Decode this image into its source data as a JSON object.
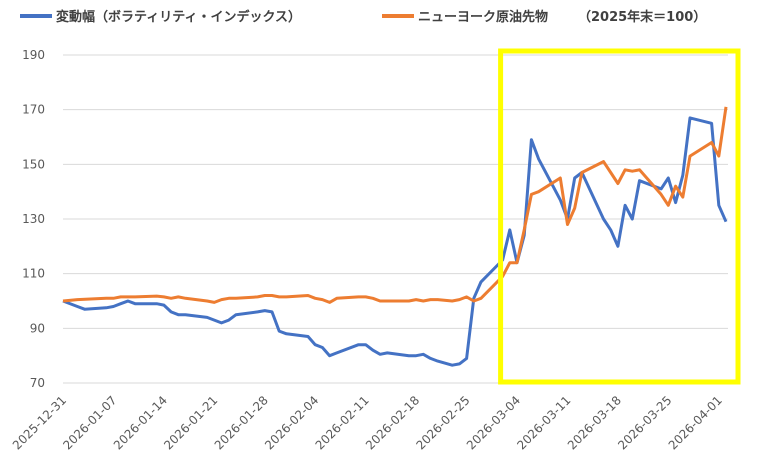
{
  "chart_data": {
    "type": "line",
    "legend": {
      "placement": "top",
      "note": "（2025年末＝100）"
    },
    "x_tick_labels": [
      "2025-12-31",
      "2026-01-07",
      "2026-01-14",
      "2026-01-21",
      "2026-01-28",
      "2026-02-04",
      "2026-02-11",
      "2026-02-18",
      "2026-02-25",
      "2026-03-04",
      "2026-03-11",
      "2026-03-18",
      "2026-03-25",
      "2026-04-01"
    ],
    "y_tick_labels": [
      "70",
      "90",
      "110",
      "130",
      "150",
      "170",
      "190"
    ],
    "ylim": [
      70,
      190
    ],
    "y_ticks": [
      70,
      90,
      110,
      130,
      150,
      170,
      190
    ],
    "grid": "horizontal",
    "highlight": {
      "from": "2026-03-02",
      "to": "2026-04-02",
      "color": "#FFFF00"
    },
    "series": [
      {
        "name": "変動幅（ボラティリティ・インデックス）",
        "color": "#4472C4",
        "points": [
          [
            "2025-12-31",
            100
          ],
          [
            "2026-01-02",
            98
          ],
          [
            "2026-01-03",
            97
          ],
          [
            "2026-01-06",
            97.5
          ],
          [
            "2026-01-07",
            98
          ],
          [
            "2026-01-08",
            99
          ],
          [
            "2026-01-09",
            100
          ],
          [
            "2026-01-10",
            99
          ],
          [
            "2026-01-13",
            99
          ],
          [
            "2026-01-14",
            98.5
          ],
          [
            "2026-01-15",
            96
          ],
          [
            "2026-01-16",
            95
          ],
          [
            "2026-01-17",
            95
          ],
          [
            "2026-01-20",
            94
          ],
          [
            "2026-01-21",
            93
          ],
          [
            "2026-01-22",
            92
          ],
          [
            "2026-01-23",
            93
          ],
          [
            "2026-01-24",
            95
          ],
          [
            "2026-01-27",
            96
          ],
          [
            "2026-01-28",
            96.5
          ],
          [
            "2026-01-29",
            96
          ],
          [
            "2026-01-30",
            89
          ],
          [
            "2026-01-31",
            88
          ],
          [
            "2026-02-03",
            87
          ],
          [
            "2026-02-04",
            84
          ],
          [
            "2026-02-05",
            83
          ],
          [
            "2026-02-06",
            80
          ],
          [
            "2026-02-07",
            81
          ],
          [
            "2026-02-10",
            84
          ],
          [
            "2026-02-11",
            84
          ],
          [
            "2026-02-12",
            82
          ],
          [
            "2026-02-13",
            80.5
          ],
          [
            "2026-02-14",
            81
          ],
          [
            "2026-02-17",
            80
          ],
          [
            "2026-02-18",
            80
          ],
          [
            "2026-02-19",
            80.5
          ],
          [
            "2026-02-20",
            79
          ],
          [
            "2026-02-21",
            78
          ],
          [
            "2026-02-23",
            76.5
          ],
          [
            "2026-02-24",
            77
          ],
          [
            "2026-02-25",
            79
          ],
          [
            "2026-02-26",
            101
          ],
          [
            "2026-02-27",
            107
          ],
          [
            "2026-03-02",
            115
          ],
          [
            "2026-03-03",
            126
          ],
          [
            "2026-03-04",
            114
          ],
          [
            "2026-03-05",
            124
          ],
          [
            "2026-03-06",
            159
          ],
          [
            "2026-03-07",
            152
          ],
          [
            "2026-03-10",
            137
          ],
          [
            "2026-03-11",
            130
          ],
          [
            "2026-03-12",
            145
          ],
          [
            "2026-03-13",
            147
          ],
          [
            "2026-03-16",
            130
          ],
          [
            "2026-03-17",
            126
          ],
          [
            "2026-03-18",
            120
          ],
          [
            "2026-03-19",
            135
          ],
          [
            "2026-03-20",
            130
          ],
          [
            "2026-03-21",
            144
          ],
          [
            "2026-03-24",
            141
          ],
          [
            "2026-03-25",
            145
          ],
          [
            "2026-03-26",
            136
          ],
          [
            "2026-03-27",
            146
          ],
          [
            "2026-03-28",
            167
          ],
          [
            "2026-03-31",
            165
          ],
          [
            "2026-04-01",
            135
          ],
          [
            "2026-04-02",
            129
          ]
        ]
      },
      {
        "name": "ニューヨーク原油先物",
        "color": "#ED7D31",
        "points": [
          [
            "2025-12-31",
            100
          ],
          [
            "2026-01-02",
            100.5
          ],
          [
            "2026-01-06",
            101
          ],
          [
            "2026-01-07",
            101
          ],
          [
            "2026-01-08",
            101.5
          ],
          [
            "2026-01-09",
            101.5
          ],
          [
            "2026-01-10",
            101.5
          ],
          [
            "2026-01-13",
            101.8
          ],
          [
            "2026-01-14",
            101.5
          ],
          [
            "2026-01-15",
            101
          ],
          [
            "2026-01-16",
            101.5
          ],
          [
            "2026-01-17",
            101
          ],
          [
            "2026-01-20",
            100
          ],
          [
            "2026-01-21",
            99.5
          ],
          [
            "2026-01-22",
            100.5
          ],
          [
            "2026-01-23",
            101
          ],
          [
            "2026-01-24",
            101
          ],
          [
            "2026-01-27",
            101.5
          ],
          [
            "2026-01-28",
            102
          ],
          [
            "2026-01-29",
            102
          ],
          [
            "2026-01-30",
            101.5
          ],
          [
            "2026-01-31",
            101.5
          ],
          [
            "2026-02-03",
            102
          ],
          [
            "2026-02-04",
            101
          ],
          [
            "2026-02-05",
            100.5
          ],
          [
            "2026-02-06",
            99.5
          ],
          [
            "2026-02-07",
            101
          ],
          [
            "2026-02-10",
            101.5
          ],
          [
            "2026-02-11",
            101.5
          ],
          [
            "2026-02-12",
            101
          ],
          [
            "2026-02-13",
            100
          ],
          [
            "2026-02-14",
            100
          ],
          [
            "2026-02-17",
            100
          ],
          [
            "2026-02-18",
            100.5
          ],
          [
            "2026-02-19",
            100
          ],
          [
            "2026-02-20",
            100.5
          ],
          [
            "2026-02-21",
            100.5
          ],
          [
            "2026-02-23",
            100
          ],
          [
            "2026-02-24",
            100.5
          ],
          [
            "2026-02-25",
            101.5
          ],
          [
            "2026-02-26",
            100
          ],
          [
            "2026-02-27",
            101
          ],
          [
            "2026-03-02",
            109
          ],
          [
            "2026-03-03",
            114
          ],
          [
            "2026-03-04",
            114
          ],
          [
            "2026-03-05",
            126
          ],
          [
            "2026-03-06",
            139
          ],
          [
            "2026-03-07",
            140
          ],
          [
            "2026-03-10",
            145
          ],
          [
            "2026-03-11",
            128
          ],
          [
            "2026-03-12",
            134
          ],
          [
            "2026-03-13",
            147
          ],
          [
            "2026-03-16",
            151
          ],
          [
            "2026-03-17",
            147
          ],
          [
            "2026-03-18",
            143
          ],
          [
            "2026-03-19",
            148
          ],
          [
            "2026-03-20",
            147.5
          ],
          [
            "2026-03-21",
            148
          ],
          [
            "2026-03-24",
            139
          ],
          [
            "2026-03-25",
            135
          ],
          [
            "2026-03-26",
            142
          ],
          [
            "2026-03-27",
            138
          ],
          [
            "2026-03-28",
            153
          ],
          [
            "2026-03-31",
            158
          ],
          [
            "2026-04-01",
            153
          ],
          [
            "2026-04-02",
            171
          ]
        ]
      }
    ]
  }
}
